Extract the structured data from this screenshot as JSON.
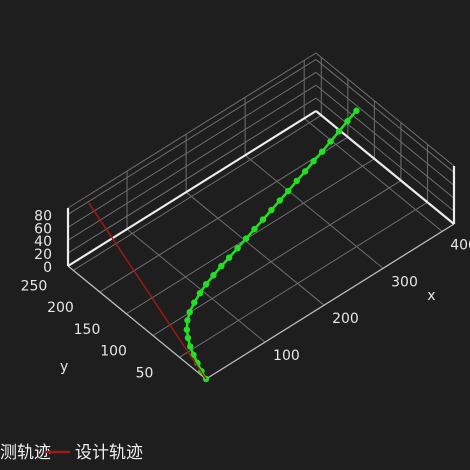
{
  "chart_data": {
    "type": "line3d",
    "axes": {
      "x": {
        "label": "x",
        "range": [
          0,
          420
        ],
        "ticks": [
          100,
          200,
          300,
          400
        ]
      },
      "y": {
        "label": "y",
        "range": [
          0,
          260
        ],
        "ticks": [
          50,
          100,
          150,
          200,
          250
        ]
      },
      "z": {
        "label": "",
        "range": [
          0,
          90
        ],
        "ticks": [
          0,
          20,
          40,
          60,
          80
        ]
      }
    },
    "grid": true,
    "legend_position": "bottom-left",
    "series": [
      {
        "name": "实测轨迹",
        "legend_text": "测轨迹",
        "color": "#22e022",
        "mode": "lines+markers",
        "points": [
          [
            0,
            0,
            0
          ],
          [
            4,
            13,
            1
          ],
          [
            9,
            26,
            2
          ],
          [
            14,
            39,
            3
          ],
          [
            20,
            52,
            4
          ],
          [
            27,
            64,
            5
          ],
          [
            35,
            75,
            6
          ],
          [
            45,
            85,
            8
          ],
          [
            56,
            93,
            9
          ],
          [
            70,
            100,
            11
          ],
          [
            85,
            106,
            13
          ],
          [
            100,
            111,
            15
          ],
          [
            116,
            115,
            17
          ],
          [
            132,
            118,
            20
          ],
          [
            148,
            121,
            22
          ],
          [
            165,
            124,
            25
          ],
          [
            182,
            127,
            28
          ],
          [
            199,
            130,
            31
          ],
          [
            216,
            133,
            34
          ],
          [
            233,
            136,
            37
          ],
          [
            250,
            139,
            40
          ],
          [
            267,
            142,
            43
          ],
          [
            284,
            145,
            47
          ],
          [
            301,
            148,
            50
          ],
          [
            318,
            151,
            54
          ],
          [
            335,
            154,
            57
          ],
          [
            352,
            157,
            61
          ],
          [
            369,
            160,
            65
          ],
          [
            386,
            163,
            69
          ],
          [
            404,
            166,
            73
          ]
        ]
      },
      {
        "name": "设计轨迹",
        "color": "#a01818",
        "mode": "lines",
        "points": [
          [
            0,
            0,
            0
          ],
          [
            26,
            250,
            90
          ]
        ]
      }
    ]
  }
}
